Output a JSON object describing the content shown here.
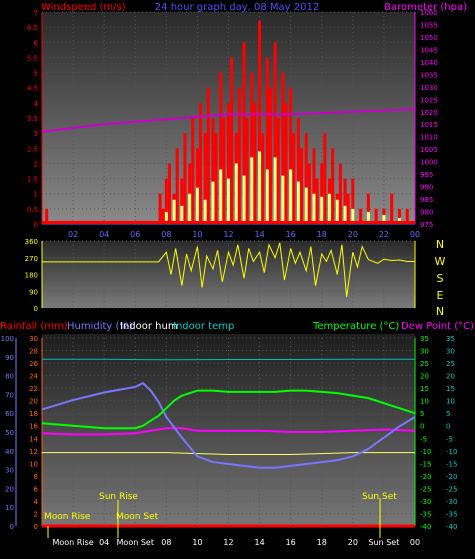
{
  "wind_panel": {
    "title": "Windspeed (m/s)",
    "subtitle": "24 hour graph day, 08 May 2012",
    "baro_title": "Barometer (hpa)",
    "colors": {
      "gust": "#ff0000",
      "avg": "#ffff80",
      "mid": "#4f7fff",
      "baro": "#cc00cc",
      "left": "#ff0000",
      "right": "#ff00ff",
      "axis": "#6666ff"
    }
  },
  "dir_panel": {
    "compass": [
      "N",
      "W",
      "S",
      "E",
      "N"
    ],
    "color": "#ffff00"
  },
  "temp_panel": {
    "labels": {
      "rain": "Rainfall (mm)",
      "humidity": "Humidity (%)",
      "indoor_hum": "Indoor hum",
      "indoor_temp": "Indoor temp",
      "temperature": "Temperature (°C)",
      "dew": "Dew Point (°C)"
    },
    "events": {
      "moon_rise": "Moon Rise",
      "moon_set": "Moon Set",
      "sun_rise": "Sun Rise",
      "sun_set": "Sun Set"
    },
    "colors": {
      "rain": "#ff0000",
      "humidity": "#7777ff",
      "indoor_hum": "#ffffff",
      "indoor_temp": "#00cccc",
      "temp": "#00ff00",
      "dew": "#ff00ff",
      "in_temp_line": "#00bbbb",
      "yellow": "#ffff00",
      "axis": "#6666ff"
    }
  },
  "chart_data": [
    {
      "type": "bar",
      "title": "Windspeed (m/s)",
      "subtitle": "24 hour graph day, 08 May 2012",
      "x_ticks": [
        "02",
        "04",
        "06",
        "08",
        "10",
        "12",
        "14",
        "16",
        "18",
        "20",
        "22",
        "00"
      ],
      "y_left_ticks": [
        "0",
        "0.5",
        "1",
        "1.5",
        "2",
        "2.5",
        "3",
        "3.5",
        "4",
        "4.5",
        "5",
        "5.5",
        "6",
        "6.5",
        "7"
      ],
      "y_left_range": [
        0,
        7
      ],
      "y_right_ticks": [
        "975",
        "980",
        "985",
        "990",
        "995",
        "1000",
        "1005",
        "1010",
        "1015",
        "1020",
        "1025",
        "1030",
        "1035",
        "1040",
        "1045",
        "1050",
        "1055",
        "1060"
      ],
      "y_right_range": [
        975,
        1060
      ],
      "series": [
        {
          "name": "gust",
          "hours": [
            0.3,
            7.6,
            7.8,
            8.0,
            8.2,
            8.5,
            8.7,
            9.0,
            9.2,
            9.5,
            9.7,
            10.0,
            10.2,
            10.5,
            10.7,
            11.0,
            11.2,
            11.5,
            11.7,
            12.0,
            12.2,
            12.5,
            12.7,
            13.0,
            13.2,
            13.5,
            13.7,
            14.0,
            14.2,
            14.5,
            14.7,
            15.0,
            15.2,
            15.5,
            15.7,
            16.0,
            16.2,
            16.5,
            16.7,
            17.0,
            17.2,
            17.5,
            17.7,
            18.0,
            18.2,
            18.5,
            18.7,
            19.0,
            19.2,
            19.5,
            19.7,
            20.0,
            20.5,
            21.0,
            21.5,
            22.0,
            22.5,
            23.0,
            23.5
          ],
          "values": [
            0.5,
            1.0,
            0.5,
            1.5,
            2.0,
            1.0,
            2.5,
            1.5,
            3.0,
            2.0,
            3.5,
            2.5,
            4.0,
            3.0,
            4.5,
            3.5,
            3.0,
            5.0,
            3.5,
            4.0,
            5.5,
            3.0,
            4.5,
            6.0,
            3.5,
            5.0,
            4.0,
            6.7,
            3.0,
            5.5,
            4.5,
            6.0,
            3.5,
            5.0,
            4.0,
            4.5,
            3.0,
            3.5,
            2.5,
            3.0,
            2.0,
            2.5,
            1.5,
            2.0,
            3.0,
            1.5,
            2.5,
            1.0,
            2.0,
            1.5,
            1.0,
            1.5,
            0.5,
            1.0,
            0.5,
            0.5,
            1.0,
            0.5,
            0.5
          ]
        },
        {
          "name": "average",
          "hours": [
            8.0,
            8.5,
            9.0,
            9.5,
            10.0,
            10.5,
            11.0,
            11.5,
            12.0,
            12.5,
            13.0,
            13.5,
            14.0,
            14.5,
            15.0,
            15.5,
            16.0,
            16.5,
            17.0,
            17.5,
            18.0,
            18.5,
            19.0,
            19.5,
            20.0,
            21.0,
            22.0,
            23.0
          ],
          "values": [
            0.4,
            0.8,
            0.6,
            1.0,
            1.2,
            0.8,
            1.4,
            1.8,
            1.5,
            2.0,
            1.6,
            2.2,
            2.4,
            1.8,
            2.2,
            1.6,
            1.8,
            1.4,
            1.2,
            1.0,
            0.9,
            1.0,
            0.8,
            0.6,
            0.5,
            0.4,
            0.3,
            0.2
          ]
        },
        {
          "name": "barometer",
          "hours": [
            0,
            4,
            8,
            12,
            16,
            20,
            24
          ],
          "values": [
            1012,
            1015,
            1017,
            1019,
            1019,
            1020,
            1021
          ]
        }
      ]
    },
    {
      "type": "scatter",
      "title": "",
      "y_ticks": [
        "0",
        "90",
        "180",
        "270",
        "360"
      ],
      "y_range": [
        0,
        360
      ],
      "series": [
        {
          "name": "direction",
          "hours": [
            0,
            1,
            2,
            3,
            4,
            5,
            6,
            7,
            7.5,
            8,
            8.3,
            8.6,
            9,
            9.3,
            9.6,
            10,
            10.3,
            10.6,
            11,
            11.3,
            11.6,
            12,
            12.3,
            12.6,
            13,
            13.3,
            13.6,
            14,
            14.3,
            14.6,
            15,
            15.3,
            15.6,
            16,
            16.3,
            16.6,
            17,
            17.3,
            17.6,
            18,
            18.3,
            18.6,
            19,
            19.3,
            19.6,
            20,
            20.3,
            20.6,
            21,
            21.3,
            21.6,
            22,
            22.5,
            23,
            23.5,
            24
          ],
          "values": [
            248,
            248,
            248,
            248,
            248,
            248,
            248,
            248,
            248,
            300,
            180,
            320,
            120,
            290,
            200,
            330,
            110,
            280,
            210,
            310,
            140,
            300,
            230,
            340,
            160,
            320,
            250,
            300,
            190,
            340,
            270,
            350,
            150,
            320,
            240,
            300,
            200,
            330,
            120,
            290,
            250,
            310,
            180,
            340,
            60,
            300,
            220,
            330,
            260,
            250,
            240,
            262,
            255,
            258,
            250,
            250
          ]
        }
      ]
    },
    {
      "type": "line",
      "title": "",
      "x_ticks": [
        "02",
        "04",
        "06",
        "08",
        "10",
        "12",
        "14",
        "16",
        "18",
        "20",
        "22",
        "00"
      ],
      "y_rain_ticks": [
        "0",
        "2",
        "4",
        "6",
        "8",
        "10",
        "12",
        "14",
        "16",
        "18",
        "20",
        "22",
        "24",
        "26",
        "28",
        "30"
      ],
      "y_rain_range": [
        0,
        30
      ],
      "y_hum_ticks": [
        "0",
        "10",
        "20",
        "30",
        "40",
        "50",
        "60",
        "70",
        "80",
        "90",
        "100"
      ],
      "y_hum_range": [
        0,
        100
      ],
      "y_temp_ticks": [
        "-40",
        "-35",
        "-30",
        "-25",
        "-20",
        "-15",
        "-10",
        "-5",
        "0",
        "5",
        "10",
        "15",
        "20",
        "25",
        "30",
        "35"
      ],
      "y_temp_range": [
        -40,
        35
      ],
      "series": [
        {
          "name": "humidity",
          "hours": [
            0,
            2,
            4,
            6,
            6.5,
            7,
            7.5,
            8,
            9,
            10,
            11,
            12,
            13,
            14,
            15,
            16,
            17,
            18,
            19,
            20,
            21,
            22,
            23,
            24
          ],
          "values": [
            62,
            67,
            71,
            74,
            76,
            72,
            66,
            58,
            47,
            37,
            34,
            33,
            32,
            31,
            31,
            32,
            33,
            34,
            35,
            37,
            41,
            47,
            53,
            58
          ]
        },
        {
          "name": "indoor_hum",
          "hours": [
            0,
            4,
            8,
            12,
            16,
            20,
            24
          ],
          "values": [
            39,
            39,
            39,
            38,
            38,
            39,
            39
          ]
        },
        {
          "name": "indoor_temp",
          "hours": [
            0,
            4,
            8,
            12,
            16,
            20,
            24
          ],
          "values": [
            26.5,
            26.5,
            26.3,
            26.4,
            26.4,
            26.5,
            26.5
          ]
        },
        {
          "name": "temperature",
          "hours": [
            0,
            1,
            2,
            3,
            4,
            5,
            6,
            6.5,
            7,
            7.5,
            8,
            8.5,
            9,
            9.5,
            10,
            11,
            12,
            13,
            14,
            15,
            16,
            17,
            18,
            19,
            20,
            21,
            22,
            23,
            24
          ],
          "values": [
            1,
            0.5,
            0,
            -0.5,
            -1,
            -1,
            -1,
            0,
            2,
            4,
            7,
            10,
            12,
            13,
            14,
            14,
            13.5,
            13.5,
            13.5,
            13.5,
            14,
            14,
            13.5,
            13,
            12,
            11,
            9,
            7,
            5
          ]
        },
        {
          "name": "dew_point",
          "hours": [
            0,
            2,
            4,
            6,
            7,
            8,
            9,
            10,
            12,
            14,
            16,
            18,
            20,
            22,
            24
          ],
          "values": [
            -3,
            -3.5,
            -3.5,
            -3,
            -2,
            -1,
            -1,
            -2,
            -2,
            -2,
            -2.5,
            -2.5,
            -2,
            -1.5,
            -2
          ]
        },
        {
          "name": "rainfall",
          "hours": [
            0,
            24
          ],
          "values": [
            0,
            0
          ]
        }
      ]
    }
  ]
}
